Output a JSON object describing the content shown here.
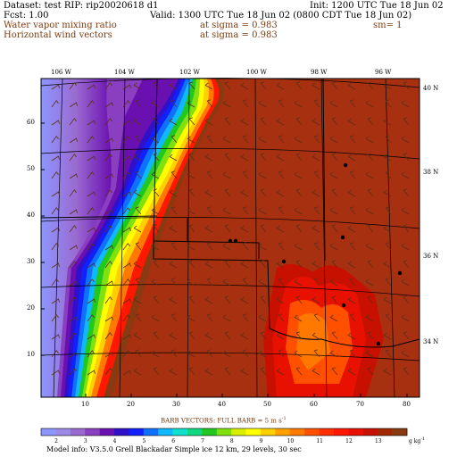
{
  "header": {
    "dataset": "Dataset: test   RIP: rip20020618  d1",
    "fcst": "Fcst:      1.00",
    "init": "Init: 1200 UTC Tue 18 Jun 02",
    "valid": "Valid: 1300 UTC Tue 18 Jun 02 (0800 CDT Tue 18 Jun 02)",
    "field1": "Water vapor mixing ratio",
    "field2": "Horizontal wind vectors",
    "sigma1": "at sigma = 0.983",
    "sigma2": "at sigma = 0.983",
    "sm": "sm= 1"
  },
  "longitude_labels": [
    "106 W",
    "104 W",
    "102 W",
    "100 W",
    "98 W",
    "96 W"
  ],
  "latitude_labels": [
    "40 N",
    "38 N",
    "36 N",
    "34 N"
  ],
  "grid_y_labels": [
    "60",
    "50",
    "40",
    "30",
    "20",
    "10"
  ],
  "grid_x_labels": [
    "10",
    "20",
    "30",
    "40",
    "50",
    "60",
    "70",
    "80"
  ],
  "barb_caption": "BARB VECTORS:  FULL BARB = 5 m s",
  "barb_caption_sup": "-1",
  "colorbar": {
    "labels": [
      "2",
      "3",
      "4",
      "5",
      "6",
      "7",
      "8",
      "9",
      "10",
      "11",
      "12",
      "13"
    ],
    "units": "g kg",
    "units_sup": "-1",
    "colors": [
      "#8c96ff",
      "#9a8ae6",
      "#9a6ad0",
      "#8a3fc0",
      "#6a10b0",
      "#3010c8",
      "#1020ff",
      "#1070ff",
      "#10b8ff",
      "#10e0d0",
      "#10d880",
      "#20c820",
      "#80e010",
      "#d8f000",
      "#ffff00",
      "#ffd000",
      "#ffa000",
      "#ff7800",
      "#ff5000",
      "#ff3000",
      "#ff1800",
      "#e81000",
      "#c81000",
      "#a02800",
      "#8a3a10"
    ]
  },
  "footer": "Model info: V3.5.0   Grell        Blackadar   Simple ice    12 km,  29 levels,    30 sec",
  "colors": {
    "brown_text": "#7a3b10",
    "dry": "#8c96ff",
    "moist": "#a02800"
  }
}
